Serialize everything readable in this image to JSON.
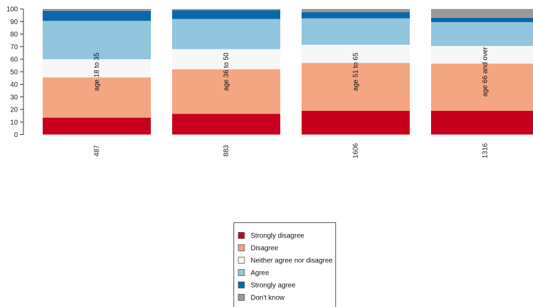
{
  "chart_data": {
    "type": "bar",
    "stacked": true,
    "title": "",
    "xlabel": "",
    "ylabel": "",
    "ylim": [
      0,
      100
    ],
    "yticks": [
      0,
      10,
      20,
      30,
      40,
      50,
      60,
      70,
      80,
      90,
      100
    ],
    "categories": [
      "487",
      "883",
      "1606",
      "1316"
    ],
    "bar_labels": [
      "age 18 to 35",
      "age 36 to 50",
      "age 51 to 65",
      "age 66 and over"
    ],
    "series": [
      {
        "name": "Strongly disagree",
        "color": "#c8001e",
        "values": [
          13.5,
          16.5,
          19,
          19
        ]
      },
      {
        "name": "Disagree",
        "color": "#f4a582",
        "values": [
          32,
          35.5,
          38,
          37.5
        ]
      },
      {
        "name": "Neither agree nor disagree",
        "color": "#f7f7f7",
        "values": [
          14.5,
          16,
          14.5,
          14
        ]
      },
      {
        "name": "Agree",
        "color": "#92c5de",
        "values": [
          30.5,
          24,
          21,
          19
        ]
      },
      {
        "name": "Strongly agree",
        "color": "#0b67aa",
        "values": [
          8,
          7,
          5,
          3.5
        ]
      },
      {
        "name": "Don't know",
        "color": "#999999",
        "values": [
          1.5,
          1,
          2.5,
          7
        ]
      }
    ],
    "legend_placement": "bottom-center",
    "grid": false
  }
}
